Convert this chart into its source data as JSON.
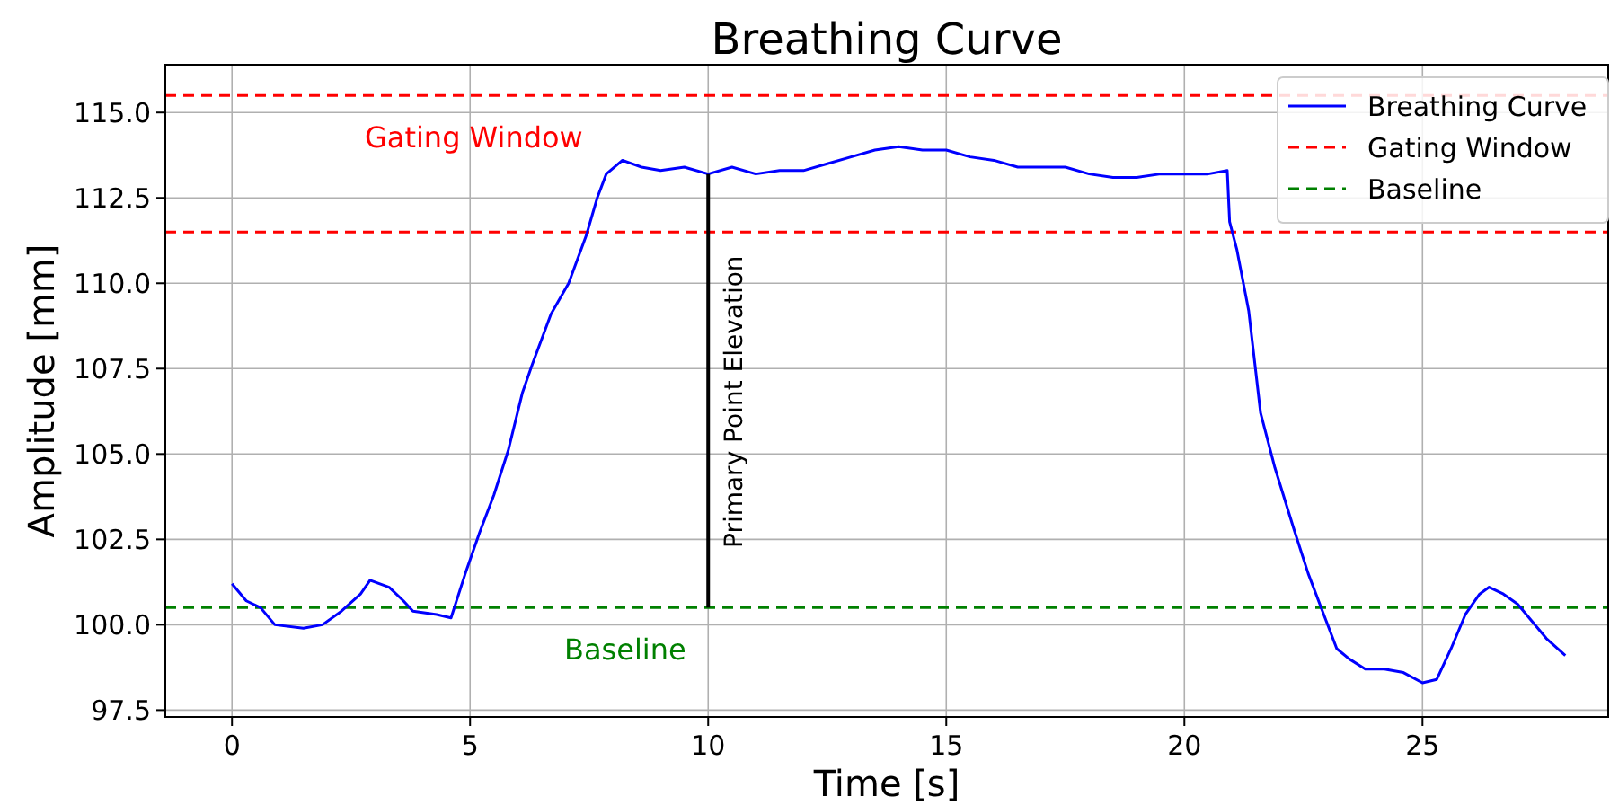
{
  "chart_data": {
    "type": "line",
    "title": "Breathing Curve",
    "xlabel": "Time [s]",
    "ylabel": "Amplitude [mm]",
    "xlim": [
      -1.4,
      28.9
    ],
    "ylim": [
      97.3,
      116.4
    ],
    "xticks": [
      0,
      5,
      10,
      15,
      20,
      25
    ],
    "yticks": [
      {
        "value": 97.5,
        "label": "97.5"
      },
      {
        "value": 100,
        "label": "100.0"
      },
      {
        "value": 102.5,
        "label": "102.5"
      },
      {
        "value": 105,
        "label": "105.0"
      },
      {
        "value": 107.5,
        "label": "107.5"
      },
      {
        "value": 110,
        "label": "110.0"
      },
      {
        "value": 112.5,
        "label": "112.5"
      },
      {
        "value": 115,
        "label": "115.0"
      }
    ],
    "grid": true,
    "legend": "top right",
    "line_style": "solid",
    "marker": "none",
    "series": [
      {
        "name": "Breathing Curve",
        "color": "#0000ff",
        "x": [
          0,
          0.3,
          0.6,
          0.9,
          1.5,
          1.9,
          2.3,
          2.7,
          2.9,
          3.3,
          3.6,
          3.8,
          4.3,
          4.6,
          4.9,
          5.2,
          5.5,
          5.8,
          6.1,
          6.3,
          6.7,
          7.07,
          7.44,
          7.67,
          7.86,
          8.2,
          8.6,
          9.0,
          9.5,
          10.0,
          10.5,
          11.0,
          11.5,
          12.0,
          12.5,
          13.0,
          13.5,
          14.0,
          14.5,
          15.0,
          15.5,
          16.0,
          16.5,
          17.0,
          17.5,
          18.0,
          18.5,
          19.0,
          19.5,
          20.0,
          20.5,
          20.9,
          20.95,
          21.1,
          21.35,
          21.6,
          21.9,
          22.3,
          22.6,
          22.9,
          23.2,
          23.46,
          23.8,
          24.2,
          24.6,
          25.0,
          25.3,
          25.6,
          25.9,
          26.2,
          26.4,
          26.7,
          27.0,
          27.3,
          27.6,
          28.0
        ],
        "values": [
          101.2,
          100.7,
          100.5,
          100.0,
          99.9,
          100.0,
          100.4,
          100.9,
          101.3,
          101.1,
          100.7,
          100.4,
          100.3,
          100.2,
          101.5,
          102.7,
          103.8,
          105.1,
          106.8,
          107.6,
          109.1,
          110.0,
          111.4,
          112.5,
          113.2,
          113.6,
          113.4,
          113.3,
          113.4,
          113.2,
          113.4,
          113.2,
          113.3,
          113.3,
          113.5,
          113.7,
          113.9,
          114.0,
          113.9,
          113.9,
          113.7,
          113.6,
          113.4,
          113.4,
          113.4,
          113.2,
          113.1,
          113.1,
          113.2,
          113.2,
          113.2,
          113.3,
          111.8,
          111.0,
          109.2,
          106.2,
          104.6,
          102.8,
          101.5,
          100.4,
          99.3,
          99.0,
          98.7,
          98.7,
          98.6,
          98.3,
          98.4,
          99.3,
          100.3,
          100.9,
          101.1,
          100.9,
          100.6,
          100.1,
          99.6,
          99.1
        ]
      },
      {
        "color": "#000000",
        "x": [
          10,
          10
        ],
        "values": [
          100.5,
          113.2
        ]
      }
    ],
    "ref_lines": [
      {
        "axis": "y",
        "value": 115.5,
        "label": "Gating Window",
        "color": "#ff0000",
        "line_style": "dashed"
      },
      {
        "axis": "y",
        "value": 111.5,
        "color": "#ff0000",
        "line_style": "dashed"
      },
      {
        "axis": "y",
        "value": 100.5,
        "label": "Baseline",
        "color": "#008000",
        "line_style": "dashed"
      }
    ],
    "annotations": [
      "Gating Window",
      "Baseline",
      "Primary Point Elevation"
    ]
  }
}
